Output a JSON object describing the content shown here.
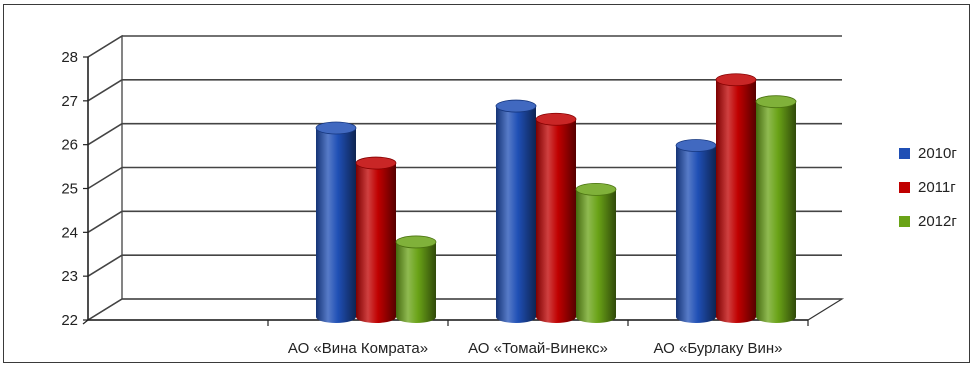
{
  "chart_data": {
    "type": "bar",
    "style": "3d-cylinder",
    "categories": [
      "АО «Вина Комрата»",
      "АО «Томай-Винекс»",
      "АО «Бурлаку Вин»"
    ],
    "series": [
      {
        "name": "2010г",
        "color": "#1f4fb5",
        "values": [
          26.7,
          27.2,
          26.3
        ]
      },
      {
        "name": "2011г",
        "color": "#c00000",
        "values": [
          25.9,
          26.9,
          27.8
        ]
      },
      {
        "name": "2012г",
        "color": "#6aa317",
        "values": [
          24.1,
          25.3,
          27.3
        ]
      }
    ],
    "ylim": [
      22,
      28
    ],
    "yticks": [
      "22",
      "23",
      "24",
      "25",
      "26",
      "27",
      "28"
    ],
    "grid": true,
    "legend": "right"
  }
}
